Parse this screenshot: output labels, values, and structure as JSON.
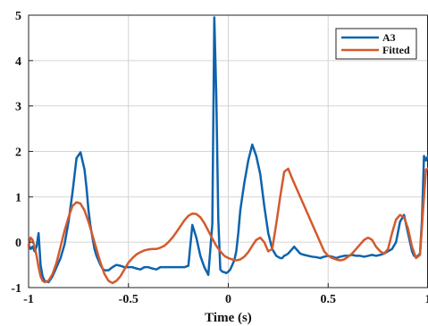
{
  "chart_data": {
    "type": "line",
    "title": "",
    "xlabel": "Time (s)",
    "ylabel": "",
    "xlim": [
      -1,
      1
    ],
    "ylim": [
      -1,
      5
    ],
    "grid": true,
    "legend_position": "top-right",
    "xticks": [
      -1,
      -0.5,
      0,
      0.5,
      1
    ],
    "xtick_labels": [
      "-1",
      "-0.5",
      "0",
      "0.5",
      "1"
    ],
    "yticks": [
      -1,
      0,
      1,
      2,
      3,
      4,
      5
    ],
    "ytick_labels": [
      "-1",
      "0",
      "1",
      "2",
      "3",
      "4",
      "5"
    ],
    "series": [
      {
        "name": "A3",
        "color": "#0d63ae",
        "x": [
          -1.0,
          -0.99,
          -0.98,
          -0.97,
          -0.96,
          -0.95,
          -0.94,
          -0.93,
          -0.92,
          -0.9,
          -0.88,
          -0.86,
          -0.84,
          -0.82,
          -0.8,
          -0.78,
          -0.76,
          -0.74,
          -0.72,
          -0.71,
          -0.7,
          -0.69,
          -0.68,
          -0.67,
          -0.66,
          -0.65,
          -0.64,
          -0.63,
          -0.62,
          -0.6,
          -0.58,
          -0.56,
          -0.54,
          -0.52,
          -0.5,
          -0.48,
          -0.46,
          -0.44,
          -0.42,
          -0.4,
          -0.38,
          -0.36,
          -0.34,
          -0.32,
          -0.3,
          -0.28,
          -0.26,
          -0.24,
          -0.22,
          -0.2,
          -0.18,
          -0.16,
          -0.14,
          -0.12,
          -0.1,
          -0.08,
          -0.07,
          -0.06,
          -0.05,
          -0.04,
          -0.03,
          -0.02,
          -0.01,
          0.0,
          0.01,
          0.02,
          0.03,
          0.04,
          0.05,
          0.06,
          0.08,
          0.1,
          0.12,
          0.14,
          0.16,
          0.18,
          0.2,
          0.22,
          0.24,
          0.26,
          0.27,
          0.28,
          0.29,
          0.3,
          0.31,
          0.32,
          0.33,
          0.34,
          0.36,
          0.38,
          0.4,
          0.42,
          0.44,
          0.46,
          0.48,
          0.5,
          0.52,
          0.54,
          0.56,
          0.58,
          0.6,
          0.62,
          0.64,
          0.66,
          0.68,
          0.7,
          0.72,
          0.74,
          0.76,
          0.78,
          0.8,
          0.82,
          0.84,
          0.86,
          0.88,
          0.89,
          0.9,
          0.91,
          0.92,
          0.93,
          0.94,
          0.95,
          0.96,
          0.97,
          0.98,
          0.99,
          1.0
        ],
        "y": [
          -0.05,
          -0.15,
          -0.1,
          -0.2,
          -0.1,
          0.2,
          -0.5,
          -0.75,
          -0.85,
          -0.88,
          -0.75,
          -0.55,
          -0.35,
          -0.05,
          0.45,
          1.1,
          1.85,
          1.98,
          1.6,
          1.2,
          0.7,
          0.35,
          0.1,
          -0.15,
          -0.3,
          -0.4,
          -0.5,
          -0.58,
          -0.62,
          -0.62,
          -0.55,
          -0.5,
          -0.52,
          -0.55,
          -0.55,
          -0.55,
          -0.58,
          -0.6,
          -0.55,
          -0.55,
          -0.58,
          -0.6,
          -0.55,
          -0.55,
          -0.55,
          -0.55,
          -0.55,
          -0.55,
          -0.55,
          -0.52,
          0.38,
          0.1,
          -0.3,
          -0.55,
          -0.72,
          0.4,
          4.95,
          3.2,
          0.5,
          -0.6,
          -0.65,
          -0.66,
          -0.68,
          -0.65,
          -0.6,
          -0.5,
          -0.4,
          -0.2,
          0.2,
          0.7,
          1.3,
          1.8,
          2.15,
          1.9,
          1.5,
          0.8,
          0.2,
          -0.15,
          -0.3,
          -0.35,
          -0.35,
          -0.3,
          -0.28,
          -0.25,
          -0.2,
          -0.15,
          -0.1,
          -0.15,
          -0.25,
          -0.28,
          -0.3,
          -0.32,
          -0.33,
          -0.35,
          -0.32,
          -0.3,
          -0.32,
          -0.35,
          -0.32,
          -0.3,
          -0.3,
          -0.28,
          -0.3,
          -0.3,
          -0.32,
          -0.3,
          -0.28,
          -0.3,
          -0.28,
          -0.25,
          -0.2,
          -0.15,
          0.0,
          0.45,
          0.6,
          0.4,
          0.2,
          0.0,
          -0.2,
          -0.3,
          -0.32,
          -0.3,
          -0.25,
          0.5,
          1.9,
          1.8,
          1.9
        ],
        "width": 2.5
      },
      {
        "name": "Fitted",
        "color": "#d45a2c",
        "x": [
          -1.0,
          -0.99,
          -0.98,
          -0.97,
          -0.96,
          -0.95,
          -0.94,
          -0.93,
          -0.92,
          -0.9,
          -0.88,
          -0.86,
          -0.84,
          -0.82,
          -0.8,
          -0.78,
          -0.76,
          -0.74,
          -0.72,
          -0.7,
          -0.68,
          -0.66,
          -0.64,
          -0.62,
          -0.6,
          -0.58,
          -0.56,
          -0.54,
          -0.52,
          -0.5,
          -0.48,
          -0.46,
          -0.44,
          -0.42,
          -0.4,
          -0.38,
          -0.36,
          -0.34,
          -0.32,
          -0.3,
          -0.28,
          -0.26,
          -0.24,
          -0.22,
          -0.2,
          -0.18,
          -0.16,
          -0.14,
          -0.12,
          -0.1,
          -0.08,
          -0.06,
          -0.04,
          -0.02,
          0.0,
          0.02,
          0.04,
          0.06,
          0.08,
          0.1,
          0.12,
          0.14,
          0.16,
          0.18,
          0.2,
          0.22,
          0.24,
          0.26,
          0.28,
          0.3,
          0.32,
          0.34,
          0.36,
          0.38,
          0.4,
          0.42,
          0.44,
          0.46,
          0.48,
          0.5,
          0.52,
          0.54,
          0.56,
          0.58,
          0.6,
          0.62,
          0.64,
          0.66,
          0.68,
          0.7,
          0.72,
          0.74,
          0.76,
          0.78,
          0.8,
          0.82,
          0.84,
          0.86,
          0.88,
          0.9,
          0.92,
          0.94,
          0.96,
          0.98,
          0.99,
          1.0
        ],
        "y": [
          -0.1,
          0.1,
          0.05,
          -0.1,
          -0.3,
          -0.55,
          -0.75,
          -0.85,
          -0.88,
          -0.85,
          -0.7,
          -0.45,
          -0.1,
          0.25,
          0.55,
          0.8,
          0.88,
          0.85,
          0.7,
          0.45,
          0.15,
          -0.15,
          -0.45,
          -0.7,
          -0.85,
          -0.9,
          -0.85,
          -0.75,
          -0.6,
          -0.45,
          -0.35,
          -0.27,
          -0.22,
          -0.18,
          -0.16,
          -0.15,
          -0.15,
          -0.12,
          -0.08,
          0.0,
          0.1,
          0.22,
          0.35,
          0.48,
          0.58,
          0.63,
          0.62,
          0.55,
          0.42,
          0.25,
          0.08,
          -0.08,
          -0.2,
          -0.3,
          -0.35,
          -0.38,
          -0.4,
          -0.38,
          -0.32,
          -0.22,
          -0.08,
          0.05,
          0.1,
          0.0,
          -0.2,
          -0.15,
          0.4,
          1.0,
          1.55,
          1.62,
          1.4,
          1.2,
          1.0,
          0.8,
          0.6,
          0.4,
          0.2,
          0.0,
          -0.2,
          -0.3,
          -0.35,
          -0.38,
          -0.4,
          -0.38,
          -0.32,
          -0.25,
          -0.15,
          -0.05,
          0.05,
          0.1,
          0.05,
          -0.1,
          -0.2,
          -0.25,
          -0.15,
          0.2,
          0.5,
          0.6,
          0.55,
          0.3,
          -0.1,
          -0.35,
          -0.28,
          1.0,
          1.6,
          1.62
        ],
        "width": 2.5
      }
    ]
  }
}
